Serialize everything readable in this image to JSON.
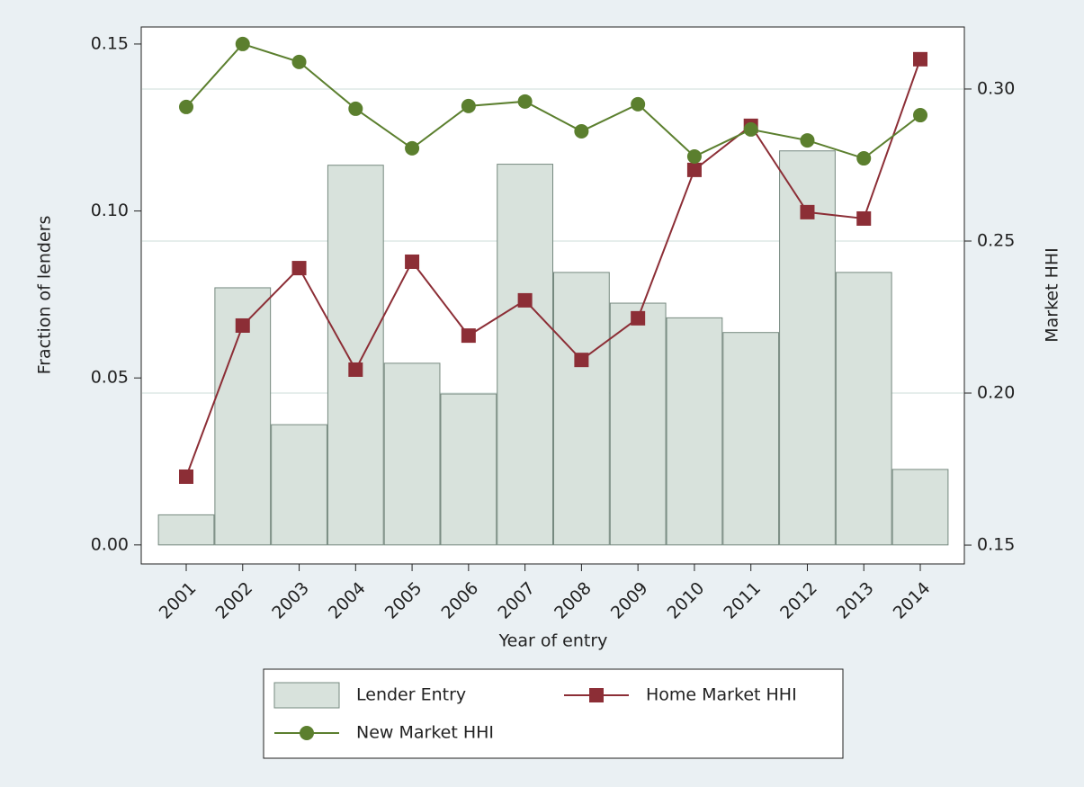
{
  "chart_data": {
    "type": "bar-line",
    "x_label": "Year of entry",
    "y_label": "Fraction of lenders",
    "y2_label": "Market HHI",
    "categories": [
      "2001",
      "2002",
      "2003",
      "2004",
      "2005",
      "2006",
      "2007",
      "2008",
      "2009",
      "2010",
      "2011",
      "2012",
      "2013",
      "2014"
    ],
    "series": [
      {
        "name": "Lender Entry",
        "type": "bar",
        "color": "#d8e2dc",
        "values": [
          0.009,
          0.077,
          0.036,
          0.1137,
          0.0544,
          0.0452,
          0.114,
          0.0816,
          0.0724,
          0.068,
          0.0636,
          0.118,
          0.0816,
          0.0226
        ]
      },
      {
        "name": "Home Market HHI",
        "type": "line",
        "marker": "square",
        "axis": "y2",
        "color": "#8c2e36",
        "values": [
          0.1725,
          0.2222,
          0.2411,
          0.2077,
          0.2432,
          0.2189,
          0.2305,
          0.2109,
          0.2246,
          0.2734,
          0.2879,
          0.2595,
          0.2574,
          0.3098
        ]
      },
      {
        "name": "New Market HHI",
        "type": "line",
        "marker": "circle",
        "axis": "y2",
        "color": "#5b7f2e",
        "values": [
          0.2941,
          0.3148,
          0.3089,
          0.2935,
          0.2805,
          0.2944,
          0.2959,
          0.2861,
          0.295,
          0.2778,
          0.2867,
          0.2831,
          0.2772,
          0.2914
        ]
      }
    ],
    "ylim": [
      -0.0057,
      0.1551
    ],
    "yticks": [
      {
        "value": 0,
        "label": "0.00"
      },
      0.05,
      {
        "value": 0.1,
        "label": "0.10"
      },
      0.15
    ],
    "y2lim": [
      0.1438,
      0.3204
    ],
    "y2ticks": [
      0.15,
      {
        "value": 0.2,
        "label": "0.20"
      },
      0.25,
      {
        "value": 0.3,
        "label": "0.30"
      }
    ],
    "grid": true,
    "legend": "bottom"
  }
}
